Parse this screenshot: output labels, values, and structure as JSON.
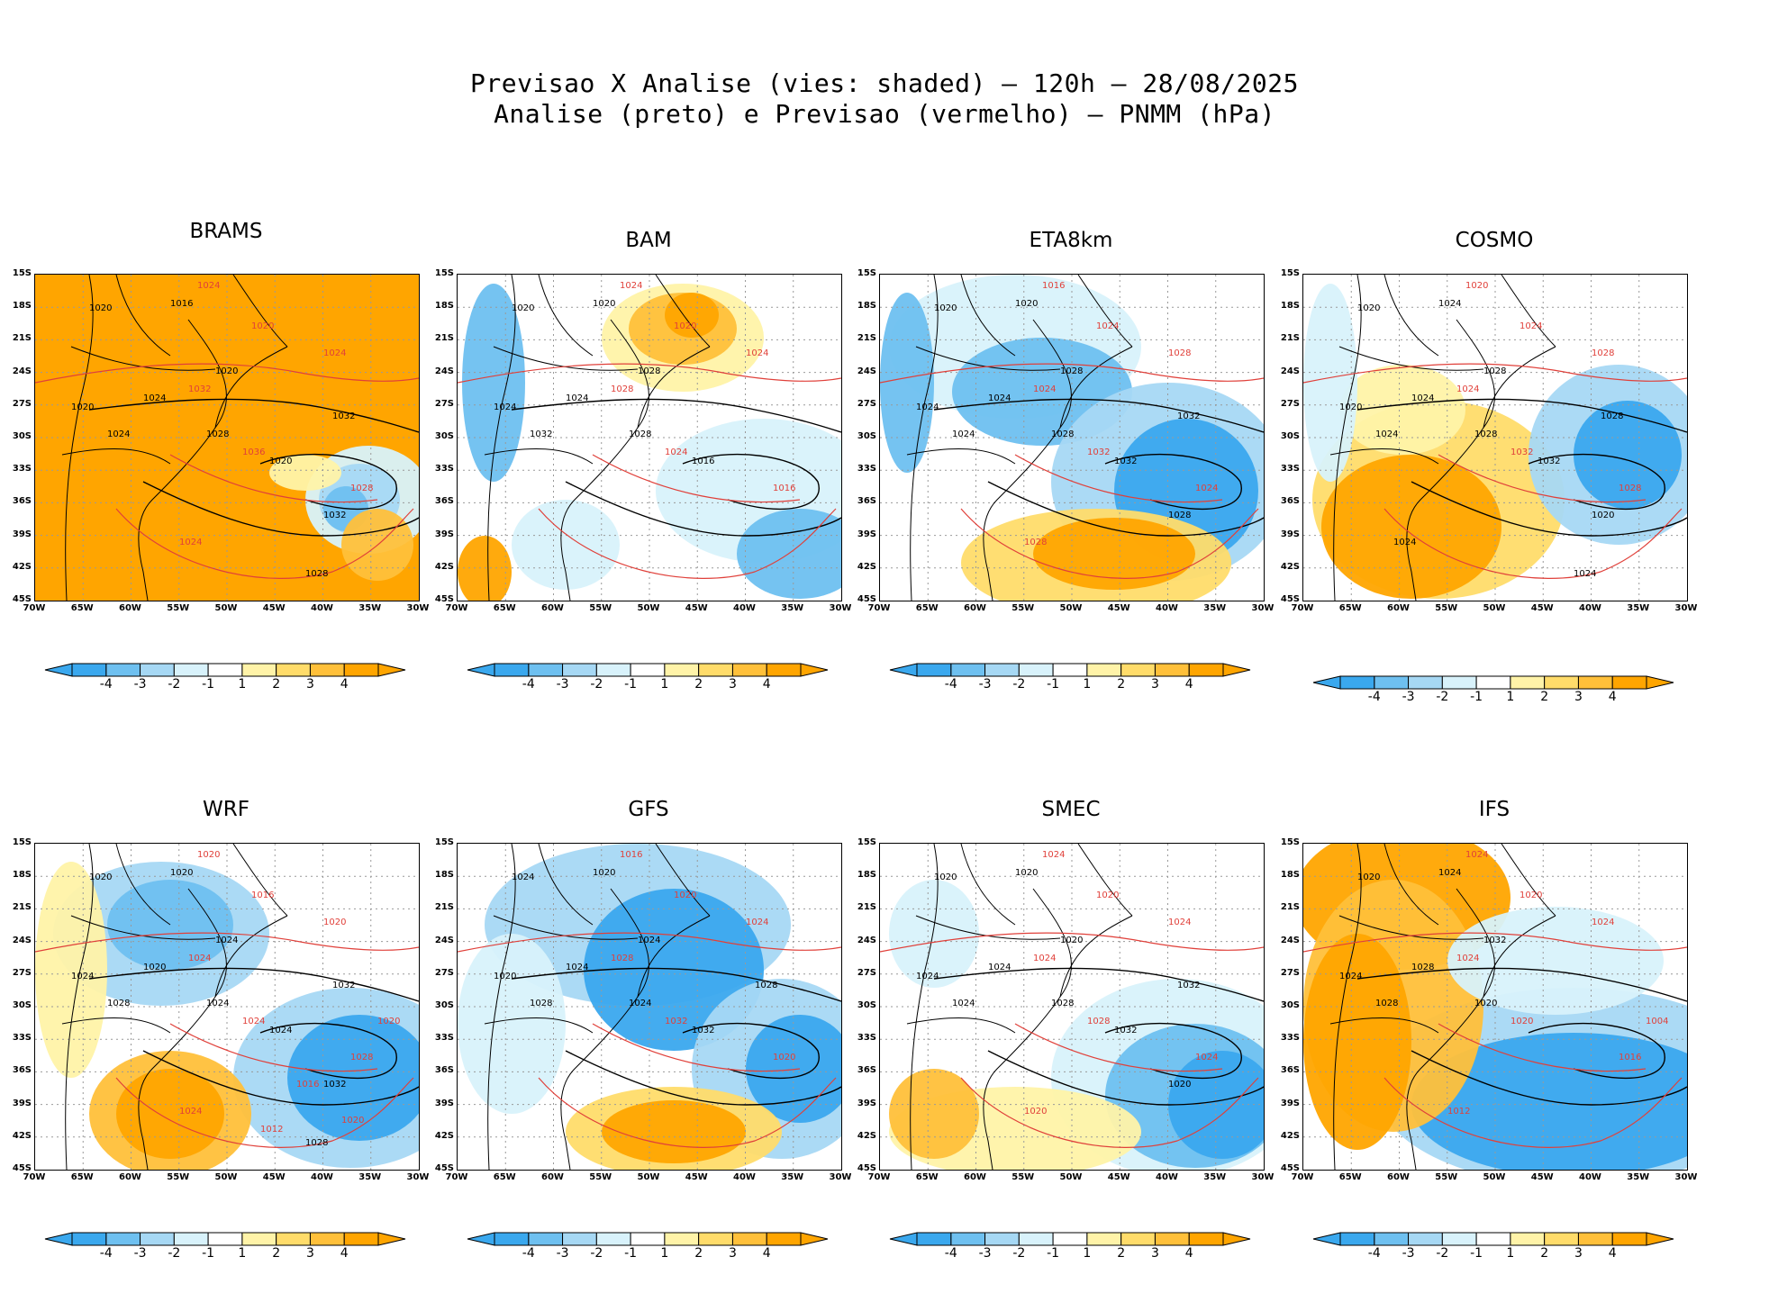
{
  "title": {
    "line1": "Previsao X Analise (vies: shaded) – 120h – 28/08/2025",
    "line2": "Analise (preto) e Previsao (vermelho) – PNMM (hPa)"
  },
  "axes": {
    "lat_labels": [
      "15S",
      "18S",
      "21S",
      "24S",
      "27S",
      "30S",
      "33S",
      "36S",
      "39S",
      "42S",
      "45S"
    ],
    "lon_labels": [
      "70W",
      "65W",
      "60W",
      "55W",
      "50W",
      "45W",
      "40W",
      "35W",
      "30W"
    ]
  },
  "colorbar": {
    "ticks": [
      "-4",
      "-3",
      "-2",
      "-1",
      "1",
      "2",
      "3",
      "4"
    ],
    "colors": [
      "#3aa8ee",
      "#6ec0f0",
      "#a6d8f4",
      "#d8f2fb",
      "#ffffff",
      "#fff3a8",
      "#ffdc6a",
      "#ffc03a",
      "#ffa500"
    ]
  },
  "colors": {
    "analysis": "#000000",
    "forecast": "#e0403a",
    "warm": "#ffa500",
    "cold": "#3aa8ee"
  },
  "panels": [
    {
      "name": "BRAMS",
      "labels_black": [
        "1020",
        "1016",
        "1020",
        "1024",
        "1020",
        "1024",
        "1028",
        "1020",
        "1032",
        "1032",
        "1028"
      ],
      "labels_red": [
        "1024",
        "1020",
        "1024",
        "1032",
        "1036",
        "1028",
        "1024"
      ]
    },
    {
      "name": "BAM",
      "labels_black": [
        "1020",
        "1020",
        "1024",
        "1024",
        "1028",
        "1032",
        "1028",
        "1016"
      ],
      "labels_red": [
        "1024",
        "1020",
        "1024",
        "1028",
        "1024",
        "1016"
      ]
    },
    {
      "name": "ETA8km",
      "labels_black": [
        "1020",
        "1020",
        "1024",
        "1024",
        "1028",
        "1024",
        "1028",
        "1032",
        "1032",
        "1028"
      ],
      "labels_red": [
        "1016",
        "1024",
        "1028",
        "1024",
        "1032",
        "1024",
        "1028"
      ]
    },
    {
      "name": "COSMO",
      "labels_black": [
        "1020",
        "1024",
        "1020",
        "1024",
        "1028",
        "1024",
        "1028",
        "1032",
        "1028",
        "1020",
        "1024",
        "1024"
      ],
      "labels_red": [
        "1020",
        "1024",
        "1028",
        "1024",
        "1032",
        "1028"
      ]
    },
    {
      "name": "WRF",
      "labels_black": [
        "1020",
        "1020",
        "1024",
        "1020",
        "1024",
        "1028",
        "1024",
        "1024",
        "1032",
        "1032",
        "1028"
      ],
      "labels_red": [
        "1020",
        "1016",
        "1020",
        "1024",
        "1024",
        "1028",
        "1024",
        "1020",
        "1016",
        "1012",
        "1020"
      ]
    },
    {
      "name": "GFS",
      "labels_black": [
        "1024",
        "1020",
        "1020",
        "1024",
        "1024",
        "1028",
        "1024",
        "1032",
        "1028"
      ],
      "labels_red": [
        "1016",
        "1020",
        "1024",
        "1028",
        "1032",
        "1020"
      ]
    },
    {
      "name": "SMEC",
      "labels_black": [
        "1020",
        "1020",
        "1024",
        "1024",
        "1020",
        "1024",
        "1028",
        "1032",
        "1032",
        "1020"
      ],
      "labels_red": [
        "1024",
        "1020",
        "1024",
        "1024",
        "1028",
        "1024",
        "1020"
      ]
    },
    {
      "name": "IFS",
      "labels_black": [
        "1020",
        "1024",
        "1024",
        "1028",
        "1032",
        "1028",
        "1020"
      ],
      "labels_red": [
        "1024",
        "1020",
        "1024",
        "1024",
        "1020",
        "1016",
        "1012",
        "1004"
      ]
    }
  ]
}
